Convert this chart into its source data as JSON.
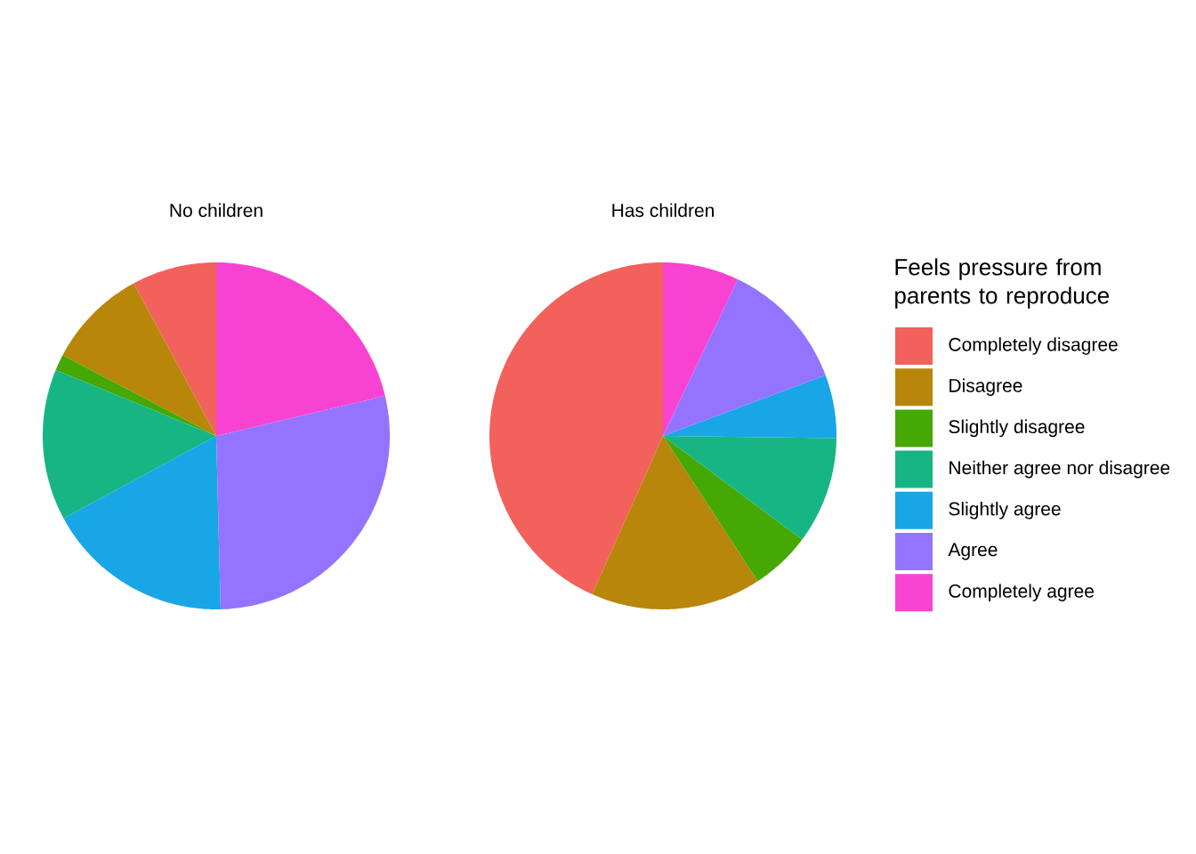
{
  "chart_data": [
    {
      "type": "pie",
      "title": "No children",
      "categories": [
        null,
        null,
        null,
        null,
        null,
        null,
        null
      ],
      "values": [
        7.9,
        9.4,
        1.5,
        14.1,
        17.5,
        28.3,
        21.3
      ],
      "colors": [
        "#f2615c",
        "#b8860b",
        "#45a805",
        "#18b584",
        "#19a6e6",
        "#9474ff",
        "#f843d2"
      ]
    },
    {
      "type": "pie",
      "title": "Has children",
      "categories": [
        "Completely disagree",
        "Disagree",
        "Slightly disagree",
        "Neither agree nor disagree",
        "Slightly agree",
        "Agree",
        "Completely agree"
      ],
      "values": [
        43.3,
        15.9,
        5.6,
        10.0,
        5.9,
        12.2,
        7.1
      ],
      "colors": [
        "#f2615c",
        "#b8860b",
        "#45a805",
        "#18b584",
        "#19a6e6",
        "#9474ff",
        "#f843d2"
      ],
      "legend": "right",
      "legend_title": "Feels pressure from parents to reproduce"
    }
  ]
}
